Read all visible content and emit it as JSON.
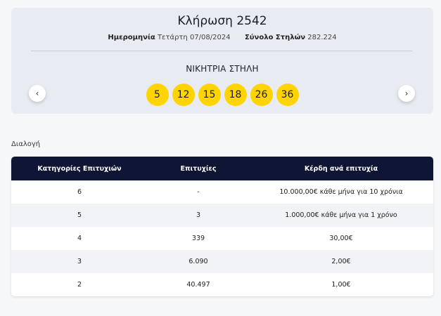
{
  "draw": {
    "title": "Κλήρωση 2542",
    "date_label": "Ημερομηνία",
    "date_value": "Τετάρτη 07/08/2024",
    "columns_label": "Σύνολο Στηλών",
    "columns_value": "282.224",
    "winning_label": "ΝΙΚΗΤΡΙΑ ΣΤΗΛΗ",
    "numbers": [
      "5",
      "12",
      "15",
      "18",
      "26",
      "36"
    ],
    "prev_icon": "chevron-left-icon",
    "next_icon": "chevron-right-icon",
    "prev_glyph": "‹",
    "next_glyph": "›"
  },
  "section_label": "Διαλογή",
  "results": {
    "headers": [
      "Κατηγορίες Επιτυχιών",
      "Επιτυχίες",
      "Κέρδη ανά επιτυχία"
    ],
    "rows": [
      [
        "6",
        "-",
        "10.000,00€ κάθε μήνα για 10 χρόνια"
      ],
      [
        "5",
        "3",
        "1.000,00€ κάθε μήνα για 1 χρόνο"
      ],
      [
        "4",
        "339",
        "30,00€"
      ],
      [
        "3",
        "6.090",
        "2,00€"
      ],
      [
        "2",
        "40.497",
        "1,00€"
      ]
    ]
  },
  "colors": {
    "ball": "#ffd400",
    "header_bg": "#0f1535",
    "card_bg": "#e8ebf2"
  }
}
